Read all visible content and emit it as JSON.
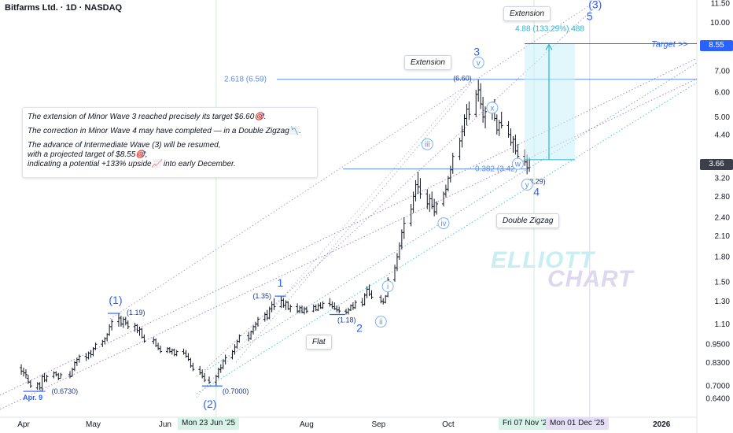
{
  "header": {
    "title": "Bitfarms Ltd. · 1D · NASDAQ"
  },
  "note": {
    "lines": [
      "The extension of Minor Wave 3 reached precisely its target $6.60🎯.",
      "The correction in Minor Wave 4 may have completed — in a Double Zigzag📉.",
      "The advance of Intermediate Wave (3) will be resumed,\n with a projected target of $8.55🎯,\n indicating a potential +133% upside📈 into early December."
    ]
  },
  "callouts": {
    "extension_top": "Extension",
    "extension_mid": "Extension",
    "double_zigzag": "Double Zigzag",
    "flat": "Flat"
  },
  "watermark": {
    "line1": "ELLIOTT",
    "line2": "CHART"
  },
  "price_tags": {
    "target": "8.55",
    "current": "3.66"
  },
  "time_tags": {
    "a": "Mon 23 Jun '25",
    "b": "Fri 07 Nov '25",
    "c": "Mon 01 Dec '25"
  },
  "colors": {
    "wave": "#2962ff",
    "fib": "#5b8def",
    "projection": "#26b6d4",
    "candle": "#131722",
    "channel": "#7e57c2"
  },
  "chart_data": {
    "type": "candlestick",
    "symbol": "BITF",
    "scale": "log",
    "ylim": [
      0.6,
      11.5
    ],
    "y_ticks": [
      "11.50",
      "10.00",
      "8.55",
      "7.00",
      "6.00",
      "5.00",
      "4.40",
      "3.66",
      "3.20",
      "2.80",
      "2.40",
      "2.10",
      "1.80",
      "1.50",
      "1.30",
      "1.10",
      "0.9500",
      "0.8300",
      "0.7000",
      "0.6400"
    ],
    "x_ticks": [
      "Apr",
      "May",
      "Jun",
      "Mon 23 Jun '25",
      "Aug",
      "Sep",
      "Oct",
      "Fri 07 Nov '25",
      "Mon 01 Dec '25",
      "2026"
    ],
    "wave_labels": [
      {
        "label": "(1)",
        "date": "2025-05-12",
        "price": 1.19,
        "value_label": "(1.19)"
      },
      {
        "label": "(2)",
        "date": "2025-06-23",
        "price": 0.7,
        "value_label": "(0.7000)"
      },
      {
        "label": "1",
        "date": "2025-07-21",
        "price": 1.35,
        "value_label": "(1.35)"
      },
      {
        "label": "2",
        "date": "2025-08-19",
        "price": 1.18,
        "value_label": "(1.18)"
      },
      {
        "label": "3",
        "date": "2025-10-14",
        "price": 6.6,
        "value_label": "(6.60)"
      },
      {
        "label": "4",
        "date": "2025-11-04",
        "price": 3.29,
        "value_label": "(3.29)"
      },
      {
        "label": "5",
        "date": "2025-12-01",
        "price": 8.55
      },
      {
        "label": "(3)",
        "date": "2025-12-01",
        "price": 8.55
      }
    ],
    "start_label": {
      "label": "Apr. 9",
      "value_label": "(0.6730)",
      "price": 0.673
    },
    "minor_labels": [
      "i",
      "ii",
      "iii",
      "iv",
      "v",
      "w",
      "x",
      "y"
    ],
    "fib_levels": [
      {
        "label": "2.618 (6.59)",
        "price": 6.59
      },
      {
        "label": "0.382 (3.42)",
        "price": 3.42
      }
    ],
    "projection": {
      "label": "4.88 (133.29%) 488",
      "from": 3.66,
      "to": 8.55,
      "target_label": "Target >>"
    },
    "ohlc": [
      [
        "2025-03-31",
        0.8,
        0.82,
        0.76,
        0.78
      ],
      [
        "2025-04-01",
        0.78,
        0.8,
        0.75,
        0.77
      ],
      [
        "2025-04-02",
        0.77,
        0.79,
        0.74,
        0.76
      ],
      [
        "2025-04-03",
        0.74,
        0.76,
        0.71,
        0.72
      ],
      [
        "2025-04-04",
        0.72,
        0.73,
        0.69,
        0.7
      ],
      [
        "2025-04-07",
        0.69,
        0.72,
        0.68,
        0.71
      ],
      [
        "2025-04-08",
        0.71,
        0.72,
        0.68,
        0.69
      ],
      [
        "2025-04-09",
        0.69,
        0.76,
        0.673,
        0.75
      ],
      [
        "2025-04-10",
        0.75,
        0.77,
        0.72,
        0.73
      ],
      [
        "2025-04-11",
        0.73,
        0.76,
        0.72,
        0.75
      ],
      [
        "2025-04-14",
        0.75,
        0.78,
        0.74,
        0.77
      ],
      [
        "2025-04-15",
        0.77,
        0.78,
        0.75,
        0.76
      ],
      [
        "2025-04-16",
        0.76,
        0.77,
        0.73,
        0.74
      ],
      [
        "2025-04-17",
        0.74,
        0.77,
        0.74,
        0.76
      ],
      [
        "2025-04-21",
        0.76,
        0.78,
        0.74,
        0.75
      ],
      [
        "2025-04-22",
        0.75,
        0.8,
        0.75,
        0.79
      ],
      [
        "2025-04-23",
        0.79,
        0.84,
        0.78,
        0.83
      ],
      [
        "2025-04-24",
        0.83,
        0.86,
        0.81,
        0.85
      ],
      [
        "2025-04-25",
        0.85,
        0.88,
        0.83,
        0.87
      ],
      [
        "2025-04-28",
        0.87,
        0.89,
        0.84,
        0.86
      ],
      [
        "2025-04-29",
        0.86,
        0.9,
        0.85,
        0.89
      ],
      [
        "2025-04-30",
        0.89,
        0.91,
        0.86,
        0.88
      ],
      [
        "2025-05-01",
        0.88,
        0.93,
        0.87,
        0.92
      ],
      [
        "2025-05-02",
        0.92,
        0.96,
        0.91,
        0.95
      ],
      [
        "2025-05-05",
        0.95,
        0.98,
        0.93,
        0.97
      ],
      [
        "2025-05-06",
        0.97,
        1.0,
        0.95,
        0.99
      ],
      [
        "2025-05-07",
        0.99,
        1.03,
        0.97,
        1.02
      ],
      [
        "2025-05-08",
        1.02,
        1.1,
        1.01,
        1.08
      ],
      [
        "2025-05-09",
        1.08,
        1.14,
        1.05,
        1.12
      ],
      [
        "2025-05-12",
        1.12,
        1.19,
        1.08,
        1.15
      ],
      [
        "2025-05-13",
        1.15,
        1.17,
        1.08,
        1.1
      ],
      [
        "2025-05-14",
        1.1,
        1.16,
        1.07,
        1.14
      ],
      [
        "2025-05-15",
        1.14,
        1.16,
        1.09,
        1.11
      ],
      [
        "2025-05-16",
        1.11,
        1.13,
        1.06,
        1.08
      ],
      [
        "2025-05-19",
        1.08,
        1.11,
        1.04,
        1.09
      ],
      [
        "2025-05-20",
        1.09,
        1.1,
        1.03,
        1.05
      ],
      [
        "2025-05-21",
        1.05,
        1.08,
        1.01,
        1.06
      ],
      [
        "2025-05-22",
        1.06,
        1.07,
        0.99,
        1.0
      ],
      [
        "2025-05-23",
        1.0,
        1.02,
        0.96,
        0.97
      ],
      [
        "2025-05-27",
        0.97,
        1.0,
        0.95,
        0.98
      ],
      [
        "2025-05-28",
        0.98,
        0.99,
        0.93,
        0.94
      ],
      [
        "2025-05-29",
        0.94,
        0.96,
        0.91,
        0.92
      ],
      [
        "2025-05-30",
        0.92,
        0.94,
        0.89,
        0.9
      ],
      [
        "2025-06-02",
        0.9,
        0.93,
        0.89,
        0.92
      ],
      [
        "2025-06-03",
        0.92,
        0.93,
        0.89,
        0.9
      ],
      [
        "2025-06-04",
        0.9,
        0.92,
        0.88,
        0.91
      ],
      [
        "2025-06-05",
        0.91,
        0.92,
        0.87,
        0.88
      ],
      [
        "2025-06-06",
        0.88,
        0.91,
        0.87,
        0.9
      ],
      [
        "2025-06-09",
        0.9,
        0.92,
        0.88,
        0.89
      ],
      [
        "2025-06-10",
        0.89,
        0.91,
        0.86,
        0.87
      ],
      [
        "2025-06-11",
        0.87,
        0.89,
        0.84,
        0.85
      ],
      [
        "2025-06-12",
        0.85,
        0.86,
        0.8,
        0.81
      ],
      [
        "2025-06-13",
        0.81,
        0.83,
        0.78,
        0.79
      ],
      [
        "2025-06-16",
        0.79,
        0.81,
        0.76,
        0.77
      ],
      [
        "2025-06-17",
        0.77,
        0.79,
        0.74,
        0.75
      ],
      [
        "2025-06-18",
        0.75,
        0.77,
        0.72,
        0.73
      ],
      [
        "2025-06-20",
        0.73,
        0.75,
        0.71,
        0.72
      ],
      [
        "2025-06-23",
        0.72,
        0.76,
        0.7,
        0.75
      ],
      [
        "2025-06-24",
        0.75,
        0.8,
        0.74,
        0.79
      ],
      [
        "2025-06-25",
        0.79,
        0.82,
        0.77,
        0.8
      ],
      [
        "2025-06-26",
        0.8,
        0.85,
        0.79,
        0.84
      ],
      [
        "2025-06-27",
        0.84,
        0.88,
        0.82,
        0.86
      ],
      [
        "2025-06-30",
        0.86,
        0.91,
        0.85,
        0.9
      ],
      [
        "2025-07-01",
        0.9,
        0.95,
        0.88,
        0.93
      ],
      [
        "2025-07-02",
        0.93,
        0.98,
        0.92,
        0.97
      ],
      [
        "2025-07-03",
        0.97,
        1.02,
        0.96,
        1.01
      ],
      [
        "2025-07-07",
        1.01,
        1.04,
        0.97,
        0.99
      ],
      [
        "2025-07-08",
        0.99,
        1.05,
        0.98,
        1.04
      ],
      [
        "2025-07-09",
        1.04,
        1.09,
        1.02,
        1.08
      ],
      [
        "2025-07-10",
        1.08,
        1.12,
        1.05,
        1.1
      ],
      [
        "2025-07-11",
        1.1,
        1.16,
        1.08,
        1.14
      ],
      [
        "2025-07-14",
        1.14,
        1.2,
        1.12,
        1.18
      ],
      [
        "2025-07-15",
        1.18,
        1.22,
        1.13,
        1.15
      ],
      [
        "2025-07-16",
        1.15,
        1.25,
        1.14,
        1.23
      ],
      [
        "2025-07-17",
        1.23,
        1.3,
        1.2,
        1.27
      ],
      [
        "2025-07-18",
        1.27,
        1.33,
        1.22,
        1.25
      ],
      [
        "2025-07-21",
        1.25,
        1.35,
        1.24,
        1.31
      ],
      [
        "2025-07-22",
        1.31,
        1.33,
        1.24,
        1.26
      ],
      [
        "2025-07-23",
        1.26,
        1.31,
        1.22,
        1.29
      ],
      [
        "2025-07-24",
        1.29,
        1.3,
        1.22,
        1.23
      ],
      [
        "2025-07-25",
        1.23,
        1.27,
        1.2,
        1.25
      ],
      [
        "2025-07-28",
        1.25,
        1.28,
        1.19,
        1.21
      ],
      [
        "2025-07-29",
        1.21,
        1.26,
        1.19,
        1.24
      ],
      [
        "2025-07-30",
        1.24,
        1.26,
        1.19,
        1.2
      ],
      [
        "2025-07-31",
        1.2,
        1.25,
        1.18,
        1.23
      ],
      [
        "2025-08-01",
        1.23,
        1.25,
        1.19,
        1.21
      ],
      [
        "2025-08-04",
        1.21,
        1.27,
        1.2,
        1.25
      ],
      [
        "2025-08-05",
        1.25,
        1.27,
        1.21,
        1.22
      ],
      [
        "2025-08-06",
        1.22,
        1.28,
        1.21,
        1.26
      ],
      [
        "2025-08-07",
        1.26,
        1.29,
        1.23,
        1.24
      ],
      [
        "2025-08-08",
        1.24,
        1.3,
        1.23,
        1.28
      ],
      [
        "2025-08-11",
        1.28,
        1.33,
        1.25,
        1.27
      ],
      [
        "2025-08-12",
        1.27,
        1.3,
        1.23,
        1.25
      ],
      [
        "2025-08-13",
        1.25,
        1.29,
        1.22,
        1.23
      ],
      [
        "2025-08-14",
        1.23,
        1.26,
        1.2,
        1.22
      ],
      [
        "2025-08-15",
        1.22,
        1.25,
        1.19,
        1.21
      ],
      [
        "2025-08-18",
        1.21,
        1.23,
        1.18,
        1.2
      ],
      [
        "2025-08-19",
        1.2,
        1.24,
        1.18,
        1.22
      ],
      [
        "2025-08-20",
        1.22,
        1.27,
        1.21,
        1.26
      ],
      [
        "2025-08-21",
        1.26,
        1.29,
        1.22,
        1.24
      ],
      [
        "2025-08-22",
        1.24,
        1.31,
        1.23,
        1.29
      ],
      [
        "2025-08-25",
        1.29,
        1.33,
        1.25,
        1.27
      ],
      [
        "2025-08-26",
        1.27,
        1.38,
        1.26,
        1.36
      ],
      [
        "2025-08-27",
        1.36,
        1.45,
        1.33,
        1.42
      ],
      [
        "2025-08-28",
        1.42,
        1.47,
        1.35,
        1.37
      ],
      [
        "2025-08-29",
        1.37,
        1.41,
        1.32,
        1.34
      ],
      [
        "2025-09-02",
        1.34,
        1.36,
        1.28,
        1.3
      ],
      [
        "2025-09-03",
        1.3,
        1.33,
        1.27,
        1.29
      ],
      [
        "2025-09-04",
        1.29,
        1.36,
        1.28,
        1.35
      ],
      [
        "2025-09-05",
        1.35,
        1.55,
        1.34,
        1.52
      ],
      [
        "2025-09-08",
        1.52,
        1.7,
        1.5,
        1.66
      ],
      [
        "2025-09-09",
        1.66,
        1.85,
        1.62,
        1.8
      ],
      [
        "2025-09-10",
        1.8,
        2.0,
        1.76,
        1.95
      ],
      [
        "2025-09-11",
        1.95,
        2.2,
        1.9,
        2.15
      ],
      [
        "2025-09-12",
        2.15,
        2.4,
        2.05,
        2.3
      ],
      [
        "2025-09-15",
        2.3,
        2.65,
        2.25,
        2.55
      ],
      [
        "2025-09-16",
        2.55,
        2.9,
        2.48,
        2.8
      ],
      [
        "2025-09-17",
        2.8,
        3.15,
        2.7,
        3.05
      ],
      [
        "2025-09-18",
        3.05,
        3.35,
        2.85,
        3.0
      ],
      [
        "2025-09-19",
        3.0,
        3.2,
        2.75,
        2.85
      ],
      [
        "2025-09-22",
        2.85,
        2.95,
        2.55,
        2.65
      ],
      [
        "2025-09-23",
        2.65,
        2.85,
        2.5,
        2.75
      ],
      [
        "2025-09-24",
        2.75,
        2.9,
        2.55,
        2.6
      ],
      [
        "2025-09-25",
        2.6,
        2.75,
        2.42,
        2.5
      ],
      [
        "2025-09-26",
        2.5,
        2.7,
        2.45,
        2.65
      ],
      [
        "2025-09-29",
        2.65,
        2.9,
        2.6,
        2.85
      ],
      [
        "2025-09-30",
        2.85,
        3.05,
        2.78,
        2.95
      ],
      [
        "2025-10-01",
        2.95,
        3.25,
        2.9,
        3.2
      ],
      [
        "2025-10-02",
        3.2,
        3.5,
        3.1,
        3.4
      ],
      [
        "2025-10-03",
        3.4,
        3.85,
        3.3,
        3.75
      ],
      [
        "2025-10-06",
        3.75,
        4.3,
        3.65,
        4.2
      ],
      [
        "2025-10-07",
        4.2,
        4.7,
        4.0,
        4.5
      ],
      [
        "2025-10-08",
        4.5,
        5.1,
        4.35,
        4.95
      ],
      [
        "2025-10-09",
        4.95,
        5.5,
        4.7,
        5.3
      ],
      [
        "2025-10-10",
        5.3,
        5.6,
        4.9,
        5.1
      ],
      [
        "2025-10-13",
        5.1,
        6.1,
        5.0,
        5.9
      ],
      [
        "2025-10-14",
        5.9,
        6.6,
        5.6,
        6.1
      ],
      [
        "2025-10-15",
        6.1,
        6.4,
        5.3,
        5.5
      ],
      [
        "2025-10-16",
        5.5,
        5.8,
        4.8,
        5.0
      ],
      [
        "2025-10-17",
        5.0,
        5.4,
        4.6,
        5.2
      ],
      [
        "2025-10-20",
        5.2,
        5.6,
        4.9,
        5.35
      ],
      [
        "2025-10-21",
        5.35,
        5.7,
        4.85,
        4.95
      ],
      [
        "2025-10-22",
        4.95,
        5.1,
        4.4,
        4.55
      ],
      [
        "2025-10-23",
        4.55,
        4.9,
        4.35,
        4.8
      ],
      [
        "2025-10-24",
        4.8,
        5.2,
        4.6,
        4.7
      ],
      [
        "2025-10-27",
        4.7,
        4.85,
        4.3,
        4.4
      ],
      [
        "2025-10-28",
        4.4,
        4.6,
        4.05,
        4.15
      ],
      [
        "2025-10-29",
        4.15,
        4.35,
        3.85,
        4.25
      ],
      [
        "2025-10-30",
        4.25,
        4.4,
        3.8,
        3.9
      ],
      [
        "2025-10-31",
        3.9,
        4.1,
        3.6,
        3.75
      ],
      [
        "2025-11-03",
        3.75,
        3.95,
        3.5,
        3.6
      ],
      [
        "2025-11-04",
        3.6,
        3.8,
        3.29,
        3.45
      ],
      [
        "2025-11-05",
        3.45,
        3.72,
        3.35,
        3.66
      ]
    ]
  }
}
